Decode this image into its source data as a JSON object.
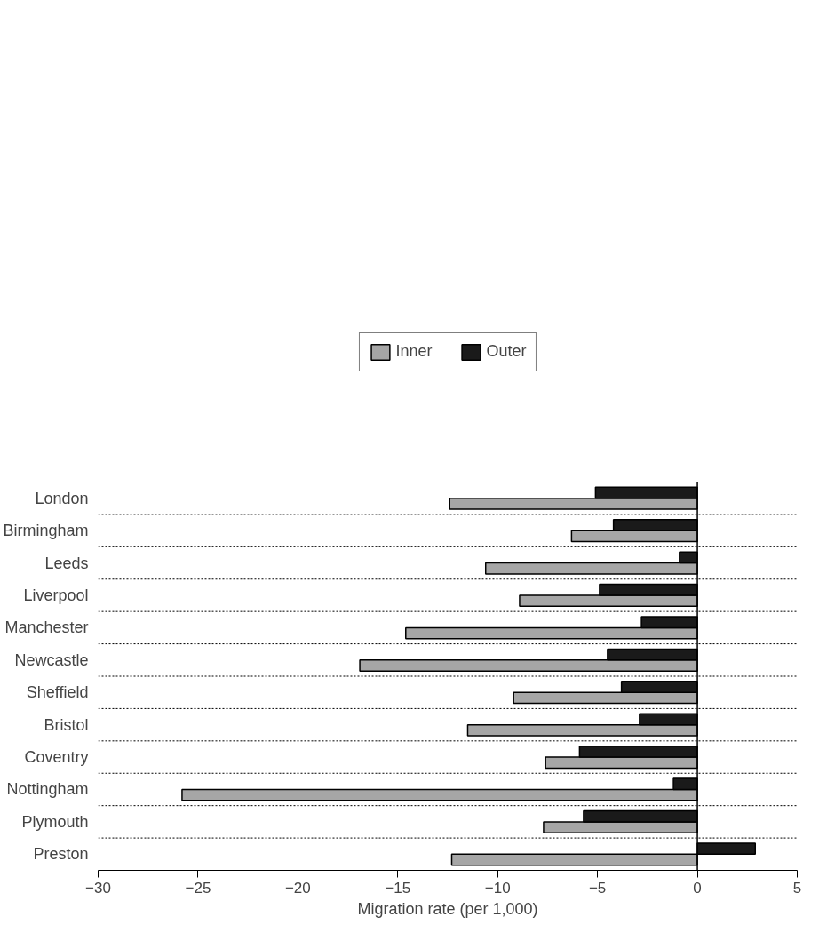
{
  "chart_data": {
    "type": "bar",
    "orientation": "horizontal",
    "xlabel": "Migration rate (per 1,000)",
    "categories": [
      "London",
      "Birmingham",
      "Leeds",
      "Liverpool",
      "Manchester",
      "Newcastle",
      "Sheffield",
      "Bristol",
      "Coventry",
      "Nottingham",
      "Plymouth",
      "Preston"
    ],
    "series": [
      {
        "name": "Inner",
        "color": "#a6a6a6",
        "values": [
          -12.4,
          -6.3,
          -10.6,
          -8.9,
          -14.6,
          -16.9,
          -9.2,
          -11.5,
          -7.6,
          -25.8,
          -7.7,
          -12.3
        ]
      },
      {
        "name": "Outer",
        "color": "#1a1a1a",
        "values": [
          -5.1,
          -4.2,
          -0.9,
          -4.9,
          -2.8,
          -4.5,
          -3.8,
          -2.9,
          -5.9,
          -1.2,
          -5.7,
          2.9
        ]
      }
    ],
    "xlim": [
      -30,
      5
    ],
    "xticks": [
      -30,
      -25,
      -20,
      -15,
      -10,
      -5,
      0,
      5
    ],
    "grid": "y",
    "legend": "top"
  }
}
